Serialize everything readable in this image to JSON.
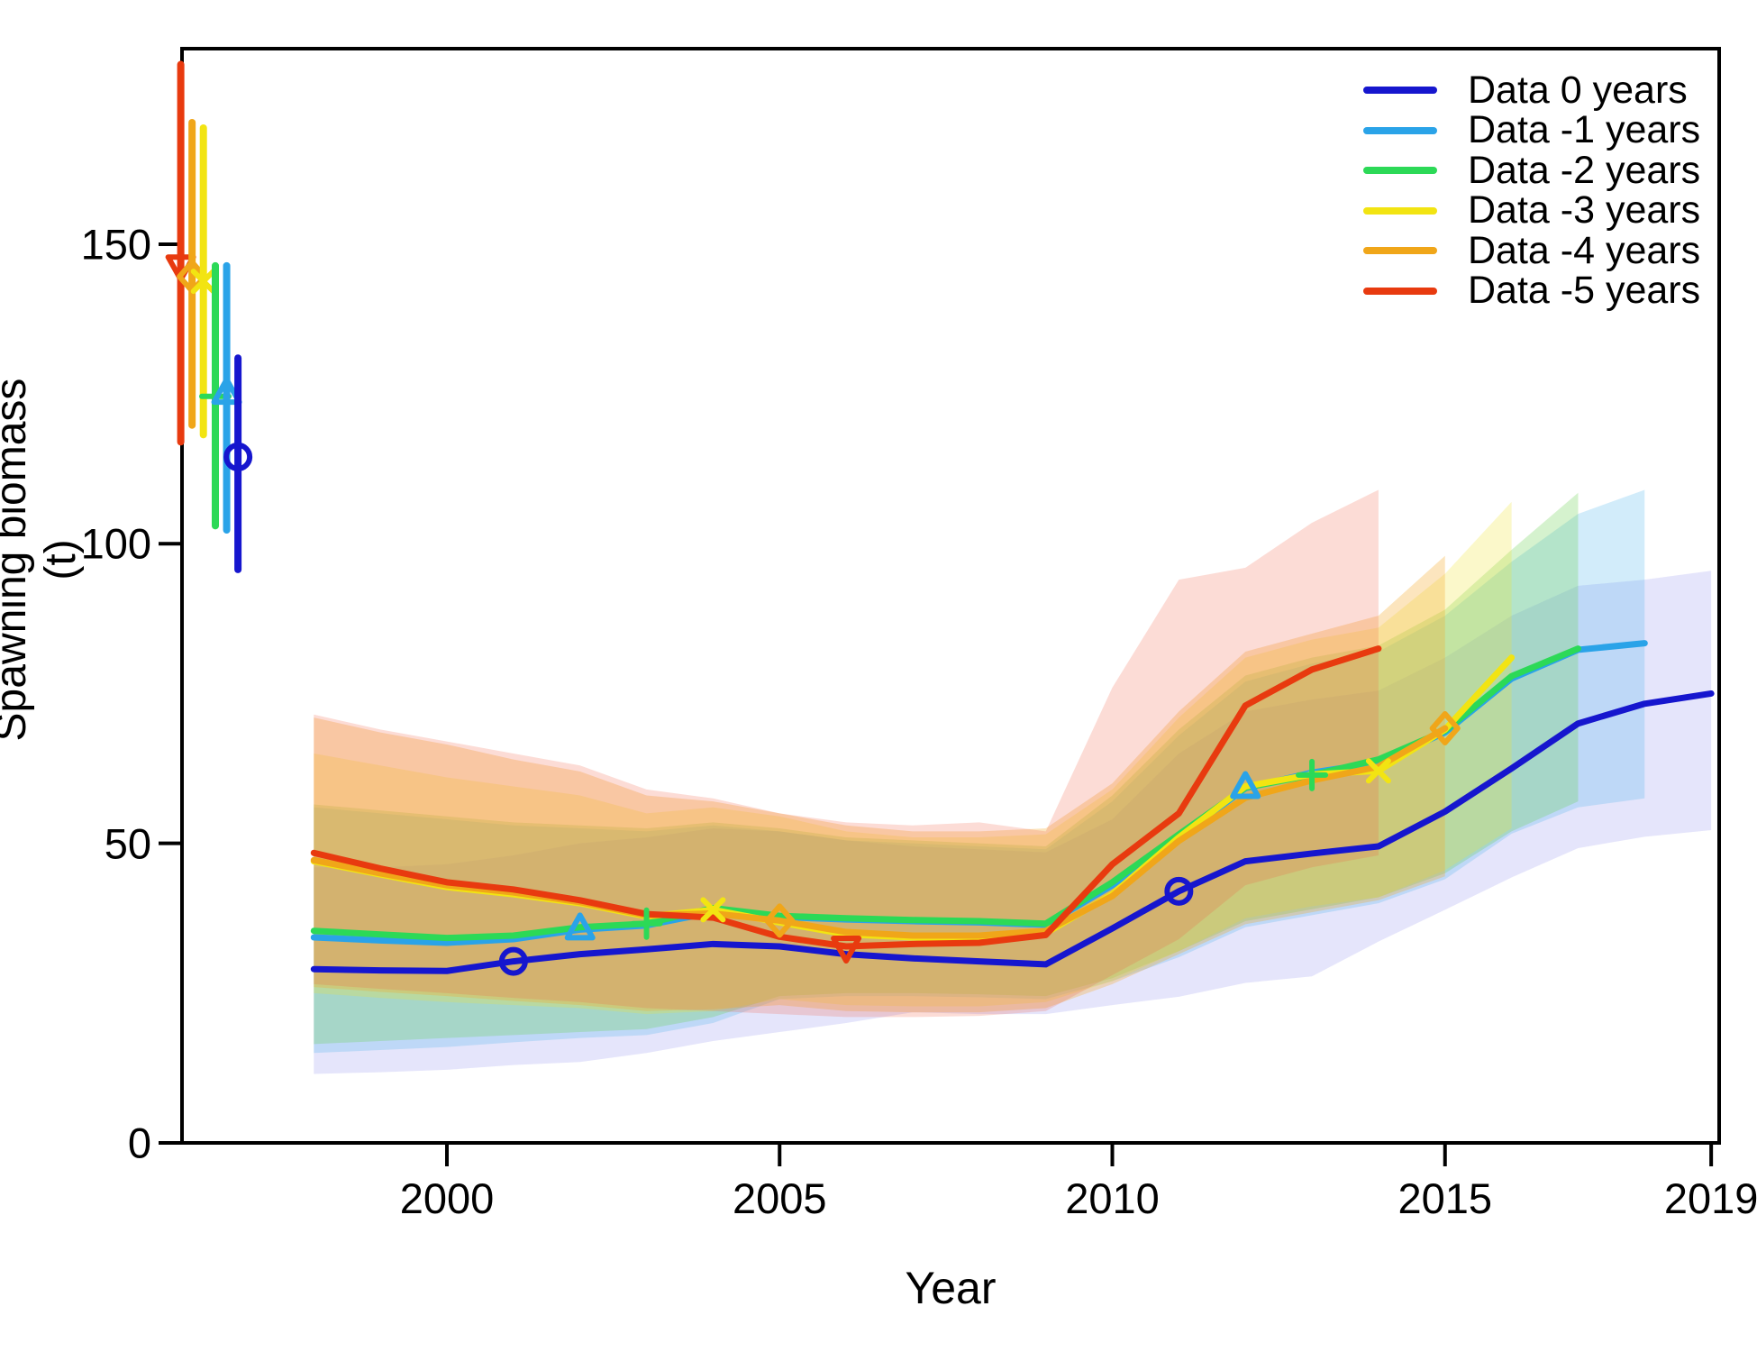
{
  "figure": {
    "kind": "retrospective-biomass-plot",
    "background": "#ffffff"
  },
  "chart_data": {
    "type": "line",
    "title": "",
    "xlabel": "Year",
    "ylabel": "Spawning biomass (t)",
    "x_ticks": [
      2000,
      2005,
      2010,
      2015,
      2019
    ],
    "x_tick_labels": [
      "2000",
      "2005",
      "2010",
      "2015",
      "2019"
    ],
    "y_ticks": [
      0,
      50,
      100,
      150
    ],
    "y_tick_labels": [
      "0",
      "50",
      "100",
      "150"
    ],
    "xlim": [
      1995.3,
      2019.6
    ],
    "ylim": [
      0,
      182
    ],
    "grid": false,
    "legend_position": "top-right-inside",
    "start_year": 1998,
    "series": [
      {
        "name": "Data 0 years",
        "color": "#1616CE",
        "band_color": "rgba(80,80,225,0.15)",
        "marker": "circle",
        "marker_years": [
          2001,
          2011
        ],
        "years_end": 2019,
        "values": [
          29.0,
          28.8,
          28.7,
          30.3,
          31.5,
          32.3,
          33.2,
          32.8,
          31.5,
          30.8,
          30.3,
          29.8,
          35.8,
          42.0,
          47.0,
          48.3,
          49.5,
          55.3,
          62.5,
          70.0,
          73.3,
          75.0
        ],
        "ci_lower": [
          11.5,
          11.8,
          12.2,
          13.0,
          13.5,
          15.0,
          17.0,
          18.5,
          20.0,
          21.8,
          21.5,
          21.5,
          23.0,
          24.4,
          26.7,
          27.8,
          33.6,
          38.9,
          44.3,
          49.2,
          51.1,
          52.2
        ],
        "ci_upper": [
          46.0,
          46.0,
          46.5,
          48.0,
          50.0,
          51.0,
          52.5,
          52.0,
          50.5,
          49.5,
          49.0,
          48.5,
          54.0,
          65.0,
          72.0,
          74.0,
          75.5,
          81.0,
          88.0,
          93.0,
          94.0,
          95.5
        ],
        "b0_estimate": {
          "x_year": 1996.86,
          "mid": 114.5,
          "lo": 95.7,
          "hi": 131.0
        }
      },
      {
        "name": "Data -1 years",
        "color": "#2AA3E8",
        "band_color": "rgba(80,180,235,0.26)",
        "marker": "triangle-up",
        "marker_years": [
          2002,
          2012
        ],
        "years_end": 2018,
        "values": [
          34.3,
          33.8,
          33.4,
          34.0,
          35.6,
          36.3,
          38.5,
          37.7,
          37.3,
          37.0,
          36.8,
          36.4,
          43.0,
          51.0,
          59.2,
          61.8,
          63.5,
          68.5,
          77.5,
          82.3,
          83.4
        ],
        "ci_lower": [
          15.0,
          15.5,
          16.0,
          16.8,
          17.5,
          18.0,
          20.0,
          24.0,
          24.5,
          24.5,
          24.3,
          24.0,
          27.0,
          31.0,
          36.0,
          38.0,
          40.0,
          44.0,
          51.6,
          56.0,
          57.5
        ],
        "ci_upper": [
          56.0,
          55.0,
          54.0,
          53.0,
          52.5,
          52.0,
          53.0,
          52.0,
          50.5,
          50.0,
          49.5,
          49.0,
          57.0,
          68.0,
          77.0,
          80.0,
          82.0,
          88.0,
          97.0,
          105.0,
          109.0
        ],
        "b0_estimate": {
          "x_year": 1996.69,
          "mid": 125.0,
          "lo": 102.3,
          "hi": 146.4
        }
      },
      {
        "name": "Data -2 years",
        "color": "#2CD957",
        "band_color": "rgba(105,210,80,0.28)",
        "marker": "plus",
        "marker_years": [
          2003,
          2013
        ],
        "years_end": 2017,
        "values": [
          35.4,
          34.8,
          34.2,
          34.6,
          36.0,
          36.6,
          39.2,
          37.9,
          37.5,
          37.2,
          37.0,
          36.6,
          43.5,
          51.5,
          59.3,
          61.4,
          64.0,
          68.8,
          77.9,
          82.5
        ],
        "ci_lower": [
          16.5,
          17.0,
          17.5,
          18.0,
          18.5,
          19.0,
          21.0,
          24.5,
          25.0,
          25.0,
          24.8,
          24.5,
          27.5,
          32.0,
          37.0,
          39.0,
          41.0,
          45.0,
          52.0,
          57.0
        ],
        "ci_upper": [
          56.5,
          55.5,
          54.5,
          53.5,
          53.0,
          52.5,
          53.5,
          52.5,
          51.0,
          50.5,
          50.0,
          49.5,
          58.0,
          69.0,
          78.0,
          81.0,
          83.0,
          89.0,
          99.0,
          108.5
        ],
        "b0_estimate": {
          "x_year": 1996.52,
          "mid": 124.6,
          "lo": 103.0,
          "hi": 146.4
        }
      },
      {
        "name": "Data -3 years",
        "color": "#F2E412",
        "band_color": "rgba(238,228,50,0.26)",
        "marker": "x",
        "marker_years": [
          2004,
          2014
        ],
        "years_end": 2016,
        "values": [
          47.0,
          44.8,
          42.7,
          41.5,
          40.0,
          37.8,
          38.9,
          36.8,
          34.8,
          34.3,
          34.3,
          35.0,
          41.5,
          51.0,
          59.5,
          61.5,
          62.1,
          69.0,
          81.0
        ],
        "ci_lower": [
          25.0,
          24.2,
          23.5,
          23.0,
          22.5,
          21.5,
          22.0,
          24.0,
          23.0,
          22.8,
          22.8,
          23.5,
          27.0,
          32.0,
          37.5,
          39.5,
          41.0,
          45.5,
          52.5
        ],
        "ci_upper": [
          65.0,
          63.0,
          61.0,
          59.5,
          58.0,
          55.0,
          56.0,
          54.5,
          52.0,
          51.0,
          51.0,
          51.5,
          59.0,
          71.0,
          81.0,
          84.0,
          86.0,
          95.0,
          107.0
        ],
        "b0_estimate": {
          "x_year": 1996.34,
          "mid": 143.8,
          "lo": 118.2,
          "hi": 169.4
        }
      },
      {
        "name": "Data -4 years",
        "color": "#F0A619",
        "band_color": "rgba(244,170,40,0.30)",
        "marker": "diamond",
        "marker_years": [
          2005,
          2015
        ],
        "years_end": 2015,
        "values": [
          47.2,
          45.0,
          43.0,
          41.8,
          40.2,
          38.0,
          38.3,
          37.1,
          35.2,
          34.6,
          34.6,
          35.4,
          41.2,
          50.4,
          57.6,
          60.5,
          62.8,
          69.2
        ],
        "ci_lower": [
          26.0,
          25.2,
          24.5,
          23.7,
          23.0,
          22.0,
          22.3,
          23.0,
          22.0,
          21.8,
          21.8,
          22.5,
          26.5,
          31.5,
          36.5,
          38.5,
          40.5,
          44.5
        ],
        "ci_upper": [
          71.0,
          68.5,
          66.5,
          64.0,
          62.0,
          58.0,
          57.0,
          55.0,
          53.0,
          52.0,
          52.0,
          52.5,
          60.0,
          72.0,
          82.0,
          85.0,
          88.0,
          98.0
        ],
        "b0_estimate": {
          "x_year": 1996.17,
          "mid": 144.6,
          "lo": 119.8,
          "hi": 170.3
        }
      },
      {
        "name": "Data -5 years",
        "color": "#E83A0F",
        "band_color": "rgba(240,95,70,0.22)",
        "marker": "triangle-down",
        "marker_years": [
          2006
        ],
        "years_end": 2014,
        "values": [
          48.4,
          45.8,
          43.5,
          42.3,
          40.5,
          38.2,
          37.6,
          34.4,
          32.8,
          33.2,
          33.4,
          34.7,
          46.5,
          55.0,
          73.0,
          79.0,
          82.5
        ],
        "ci_lower": [
          26.5,
          25.7,
          25.0,
          24.2,
          23.5,
          22.5,
          22.0,
          21.5,
          21.0,
          21.0,
          21.2,
          22.0,
          28.0,
          34.0,
          43.0,
          46.0,
          48.0
        ],
        "ci_upper": [
          71.5,
          69.0,
          67.0,
          65.0,
          63.0,
          59.0,
          57.5,
          55.0,
          53.5,
          53.0,
          53.5,
          52.0,
          76.0,
          94.0,
          96.0,
          103.5,
          109.0
        ],
        "b0_estimate": {
          "x_year": 1996.0,
          "mid": 146.5,
          "lo": 117.0,
          "hi": 180.0
        }
      }
    ]
  }
}
